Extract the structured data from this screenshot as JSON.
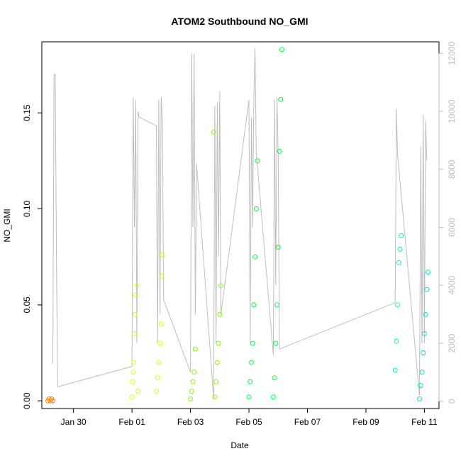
{
  "chart_data": {
    "type": "scatter",
    "title": "ATOM2 Southbound NO_GMI",
    "xlabel": "Date",
    "ylabel": "NO_GMI",
    "x_ticks": [
      "Jan 30",
      "Feb 01",
      "Feb 03",
      "Feb 05",
      "Feb 07",
      "Feb 09",
      "Feb 11"
    ],
    "y_ticks": [
      "0.00",
      "0.05",
      "0.10",
      "0.15"
    ],
    "y2_ticks": [
      "0",
      "2000",
      "4000",
      "6000",
      "8000",
      "10000",
      "12000"
    ],
    "xlim": [
      "2017-01-28T22:00",
      "2017-02-11T12:00"
    ],
    "ylim": [
      -0.004,
      0.187
    ],
    "y2lim": [
      -250,
      12400
    ],
    "x_year": 2017,
    "colors": {
      "altitude_line": "#bdbdbd"
    },
    "series": [
      {
        "color": "#ff7f00",
        "x": [
          "2017-01-29T03:00",
          "2017-01-29T04:00",
          "2017-01-29T05:00",
          "2017-01-29T06:00",
          "2017-01-29T07:00"
        ],
        "y": [
          0.0,
          0.001,
          0.0,
          0.001,
          0.0
        ]
      },
      {
        "color": "#dfff00",
        "x": [
          "2017-02-01T00:00",
          "2017-02-01T00:30",
          "2017-02-01T01:00",
          "2017-02-01T01:30",
          "2017-02-01T02:00",
          "2017-02-01T02:30",
          "2017-02-01T03:00",
          "2017-02-01T04:00",
          "2017-02-01T05:00",
          "2017-02-01T20:00",
          "2017-02-01T21:00",
          "2017-02-01T22:00",
          "2017-02-01T23:00",
          "2017-02-02T00:00",
          "2017-02-02T00:30",
          "2017-02-02T01:00"
        ],
        "y": [
          0.002,
          0.01,
          0.015,
          0.02,
          0.035,
          0.045,
          0.055,
          0.06,
          0.005,
          0.005,
          0.012,
          0.02,
          0.03,
          0.04,
          0.065,
          0.076
        ]
      },
      {
        "color": "#7fff00",
        "x": [
          "2017-02-03T00:00",
          "2017-02-03T01:00",
          "2017-02-03T02:00",
          "2017-02-03T03:00",
          "2017-02-03T04:00",
          "2017-02-03T19:00",
          "2017-02-03T20:00",
          "2017-02-03T21:00",
          "2017-02-03T22:00",
          "2017-02-03T23:00",
          "2017-02-04T00:00",
          "2017-02-04T01:00"
        ],
        "y": [
          0.001,
          0.005,
          0.01,
          0.015,
          0.027,
          0.14,
          0.002,
          0.01,
          0.02,
          0.03,
          0.045,
          0.06
        ]
      },
      {
        "color": "#00ff3f",
        "x": [
          "2017-02-05T00:00",
          "2017-02-05T01:00",
          "2017-02-05T02:00",
          "2017-02-05T03:00",
          "2017-02-05T04:00",
          "2017-02-05T05:00",
          "2017-02-05T06:00",
          "2017-02-05T07:00",
          "2017-02-05T20:00",
          "2017-02-05T21:00",
          "2017-02-05T22:00",
          "2017-02-05T23:00",
          "2017-02-06T00:00",
          "2017-02-06T01:00",
          "2017-02-06T02:00",
          "2017-02-06T03:00"
        ],
        "y": [
          0.002,
          0.01,
          0.02,
          0.03,
          0.05,
          0.075,
          0.1,
          0.125,
          0.002,
          0.012,
          0.03,
          0.05,
          0.08,
          0.13,
          0.157,
          0.183
        ]
      },
      {
        "color": "#00ff9f",
        "x": [
          "2017-02-10T00:00",
          "2017-02-10T01:00",
          "2017-02-10T02:00",
          "2017-02-10T03:00",
          "2017-02-10T04:00",
          "2017-02-10T05:00"
        ],
        "y": [
          0.016,
          0.031,
          0.05,
          0.072,
          0.079,
          0.086
        ]
      },
      {
        "color": "#00e5c8",
        "x": [
          "2017-02-10T20:00",
          "2017-02-10T21:00",
          "2017-02-10T22:00",
          "2017-02-10T23:00",
          "2017-02-11T00:00",
          "2017-02-11T01:00",
          "2017-02-11T02:00",
          "2017-02-11T03:00"
        ],
        "y": [
          0.001,
          0.008,
          0.015,
          0.025,
          0.035,
          0.045,
          0.058,
          0.067
        ]
      }
    ],
    "altitude": {
      "x": [
        "2017-01-29T07:00",
        "2017-01-29T08:00",
        "2017-01-29T08:30",
        "2017-01-29T09:00",
        "2017-01-29T10:00",
        "2017-01-29T11:00",
        "2017-02-01T00:00",
        "2017-02-01T01:00",
        "2017-02-01T02:00",
        "2017-02-01T03:00",
        "2017-02-01T04:00",
        "2017-02-01T05:00",
        "2017-02-01T06:00",
        "2017-02-01T20:00",
        "2017-02-01T21:00",
        "2017-02-01T22:00",
        "2017-02-01T23:00",
        "2017-02-02T00:00",
        "2017-02-02T01:00",
        "2017-02-02T02:00",
        "2017-02-03T00:00",
        "2017-02-03T01:00",
        "2017-02-03T02:00",
        "2017-02-03T03:00",
        "2017-02-03T04:00",
        "2017-02-03T05:00",
        "2017-02-03T19:00",
        "2017-02-03T20:00",
        "2017-02-03T21:00",
        "2017-02-03T22:00",
        "2017-02-03T23:00",
        "2017-02-04T00:00",
        "2017-02-04T01:00",
        "2017-02-05T00:00",
        "2017-02-05T01:00",
        "2017-02-05T02:00",
        "2017-02-05T03:00",
        "2017-02-05T04:00",
        "2017-02-05T05:00",
        "2017-02-05T06:00",
        "2017-02-05T20:00",
        "2017-02-05T21:00",
        "2017-02-05T22:00",
        "2017-02-05T23:00",
        "2017-02-06T00:00",
        "2017-02-06T01:00",
        "2017-02-10T00:00",
        "2017-02-10T01:00",
        "2017-02-10T02:00",
        "2017-02-10T20:00",
        "2017-02-10T21:00",
        "2017-02-10T22:00",
        "2017-02-10T23:00",
        "2017-02-11T00:00",
        "2017-02-11T01:00",
        "2017-02-11T02:00"
      ],
      "y": [
        1300,
        11200,
        11300,
        11300,
        5000,
        500,
        1200,
        10500,
        6000,
        10400,
        2000,
        10000,
        9800,
        9500,
        2000,
        10400,
        3000,
        10500,
        9500,
        3500,
        1000,
        12000,
        6000,
        12000,
        3000,
        8200,
        100,
        10200,
        2000,
        10300,
        5000,
        10700,
        3000,
        10400,
        2000,
        9800,
        6000,
        10400,
        12200,
        8600,
        1600,
        10400,
        4000,
        10500,
        8500,
        1800,
        3400,
        10100,
        8500,
        200,
        8800,
        2000,
        9900,
        2000,
        9700,
        8300
      ]
    }
  }
}
